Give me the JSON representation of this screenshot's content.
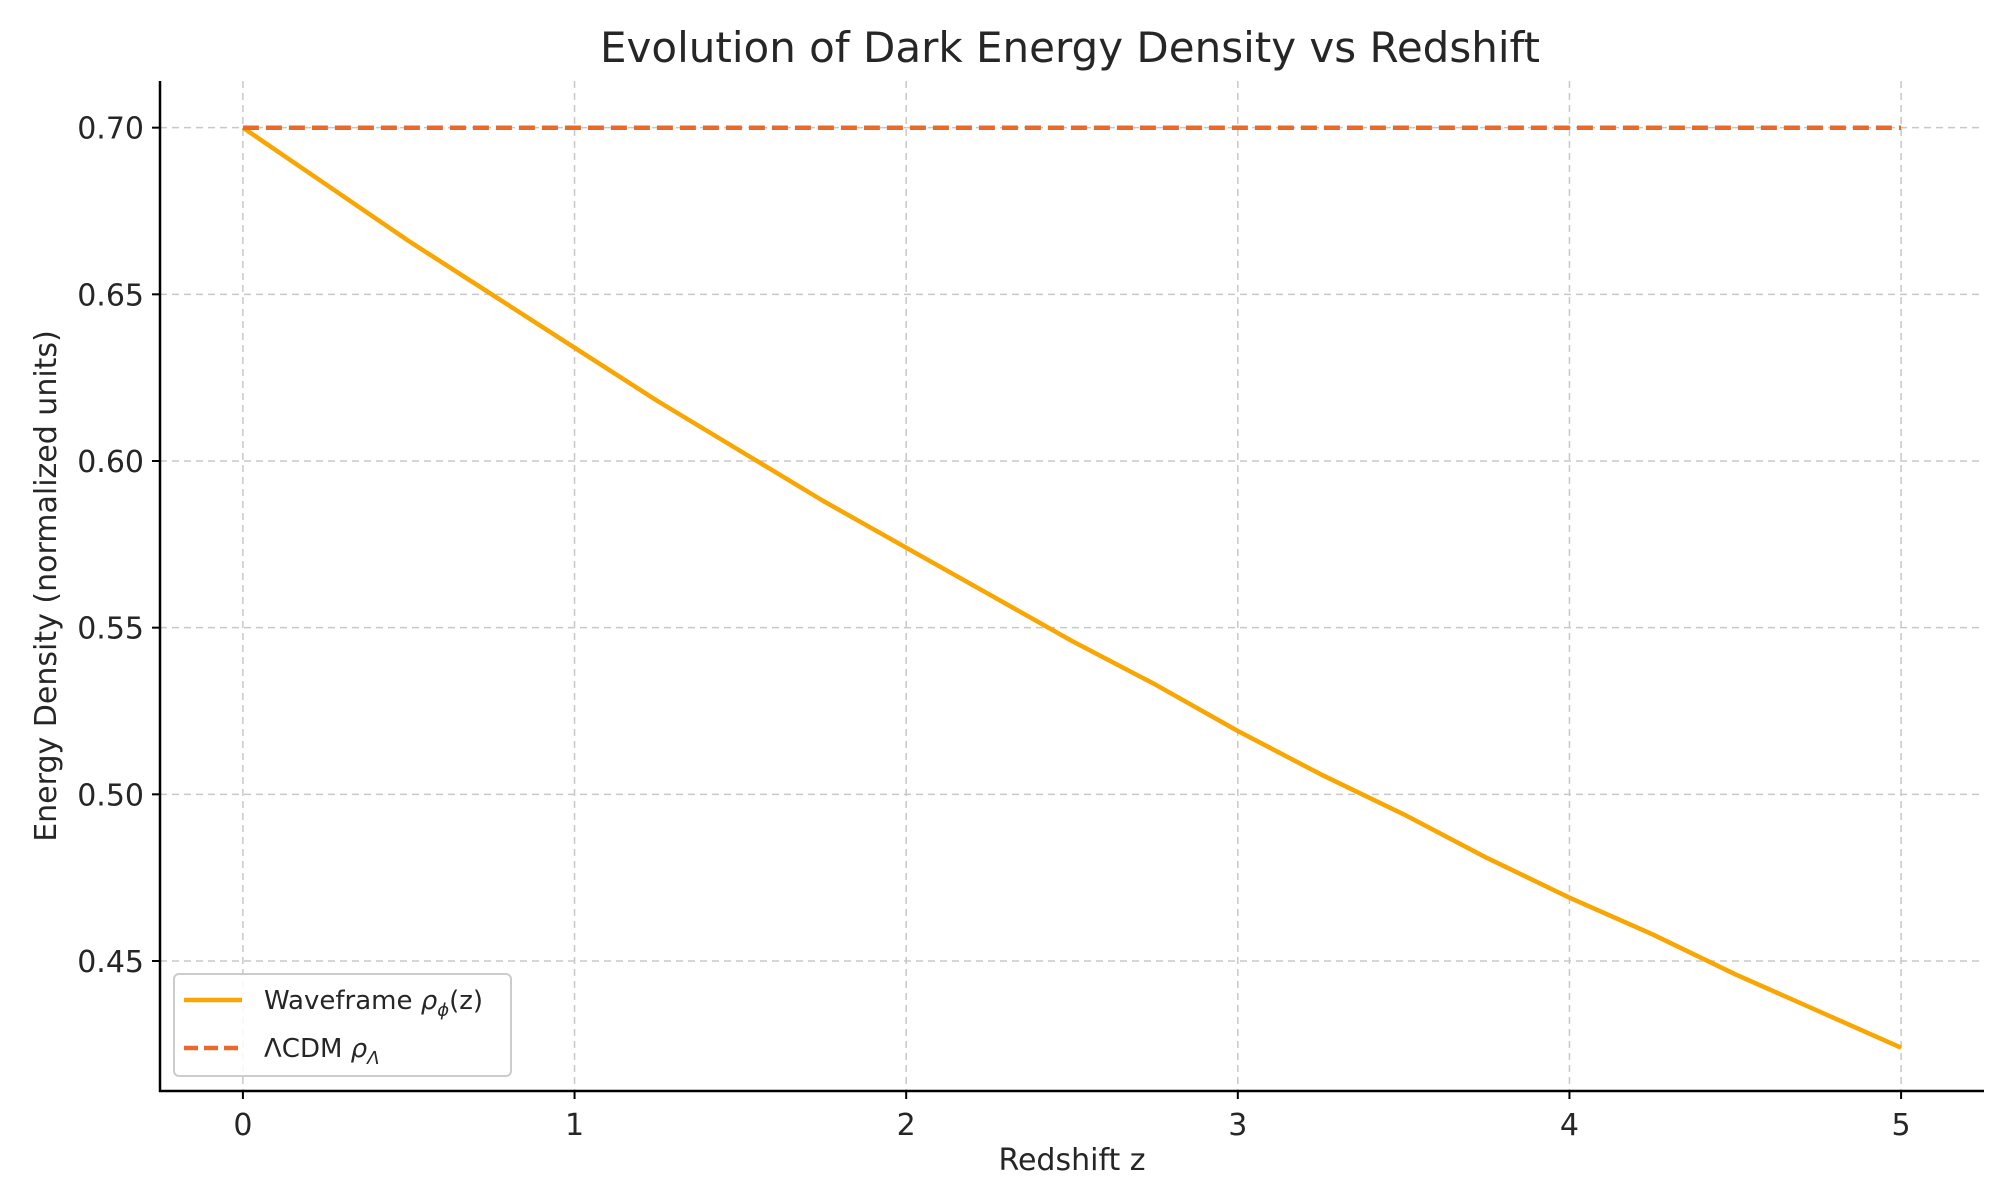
{
  "chart_data": {
    "type": "line",
    "title": "Evolution of Dark Energy Density vs Redshift",
    "xlabel": "Redshift z",
    "ylabel": "Energy Density (normalized units)",
    "xlim": [
      -0.25,
      5.25
    ],
    "ylim": [
      0.411,
      0.714
    ],
    "xticks": [
      0,
      1,
      2,
      3,
      4,
      5
    ],
    "xtick_labels": [
      "0",
      "1",
      "2",
      "3",
      "4",
      "5"
    ],
    "yticks": [
      0.45,
      0.5,
      0.55,
      0.6,
      0.65,
      0.7
    ],
    "ytick_labels": [
      "0.45",
      "0.50",
      "0.55",
      "0.60",
      "0.65",
      "0.70"
    ],
    "grid": true,
    "legend_position": "lower-left",
    "series": [
      {
        "name": "Waveframe ρϕ(z)",
        "name_text": "Waveframe ",
        "name_math": "ρ",
        "name_sub": "ϕ",
        "name_suffix": "(z)",
        "color": "#F9A602",
        "style": "solid",
        "x": [
          0,
          0.25,
          0.5,
          0.75,
          1,
          1.25,
          1.5,
          1.75,
          2,
          2.25,
          2.5,
          2.75,
          3,
          3.25,
          3.5,
          3.75,
          4,
          4.25,
          4.5,
          4.75,
          5
        ],
        "y": [
          0.7,
          0.683,
          0.666,
          0.65,
          0.634,
          0.618,
          0.603,
          0.588,
          0.574,
          0.56,
          0.546,
          0.533,
          0.519,
          0.506,
          0.494,
          0.481,
          0.469,
          0.458,
          0.446,
          0.435,
          0.424
        ]
      },
      {
        "name": "ΛCDM ρΛ",
        "name_text": "ΛCDM ",
        "name_math": "ρ",
        "name_sub": "Λ",
        "name_suffix": "",
        "color": "#E8692A",
        "style": "dashed",
        "x": [
          0,
          5
        ],
        "y": [
          0.7,
          0.7
        ]
      }
    ]
  }
}
